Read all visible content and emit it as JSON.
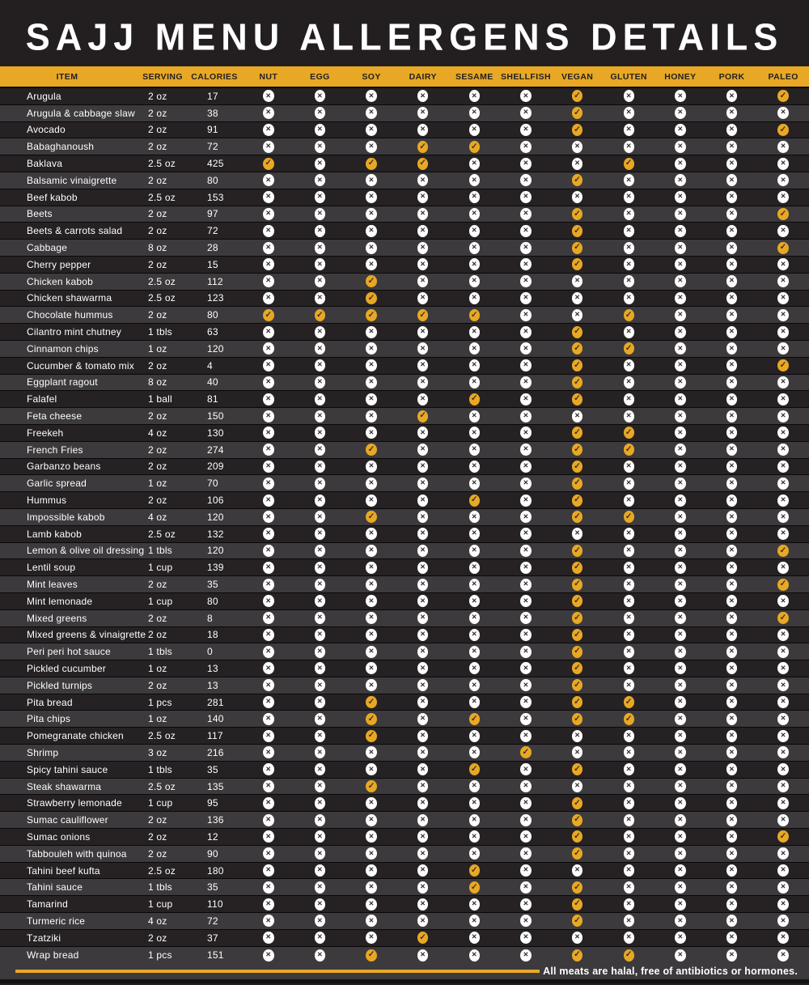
{
  "title": "SAJJ MENU ALLERGENS DETAILS",
  "columns": [
    "ITEM",
    "SERVING",
    "CALORIES",
    "NUT",
    "EGG",
    "SOY",
    "DAIRY",
    "SESAME",
    "SHELLFISH",
    "VEGAN",
    "GLUTEN",
    "HONEY",
    "PORK",
    "PALEO"
  ],
  "marks": {
    "check": "✓",
    "x": "✕"
  },
  "footer": {
    "note": "All meats are halal, free of antibiotics or hormones."
  },
  "colors": {
    "gold": "#E8A825",
    "page_bg": "#231F20",
    "row_dark": "#262223",
    "row_light": "#3C3A3C",
    "separator": "#0A0809",
    "title_text": "#FFFFFF",
    "header_text": "#231F20",
    "row_text": "#FFFFFF",
    "mark_x_bg": "#FFFFFF",
    "mark_glyph": "#272324",
    "footer_text": "#FFFFFF",
    "bottom_strip": "#141112"
  },
  "rows": [
    {
      "item": "Arugula",
      "serving": "2 oz",
      "calories": "17",
      "marks": [
        0,
        0,
        0,
        0,
        0,
        0,
        1,
        0,
        0,
        0,
        1
      ]
    },
    {
      "item": "Arugula & cabbage slaw",
      "serving": "2 oz",
      "calories": "38",
      "marks": [
        0,
        0,
        0,
        0,
        0,
        0,
        1,
        0,
        0,
        0,
        0
      ]
    },
    {
      "item": "Avocado",
      "serving": "2 oz",
      "calories": "91",
      "marks": [
        0,
        0,
        0,
        0,
        0,
        0,
        1,
        0,
        0,
        0,
        1
      ]
    },
    {
      "item": "Babaghanoush",
      "serving": "2 oz",
      "calories": "72",
      "marks": [
        0,
        0,
        0,
        1,
        1,
        0,
        0,
        0,
        0,
        0,
        0
      ]
    },
    {
      "item": "Baklava",
      "serving": "2.5 oz",
      "calories": "425",
      "marks": [
        1,
        0,
        1,
        1,
        0,
        0,
        0,
        1,
        0,
        0,
        0
      ]
    },
    {
      "item": "Balsamic vinaigrette",
      "serving": "2 oz",
      "calories": "80",
      "marks": [
        0,
        0,
        0,
        0,
        0,
        0,
        1,
        0,
        0,
        0,
        0
      ]
    },
    {
      "item": "Beef kabob",
      "serving": "2.5 oz",
      "calories": "153",
      "marks": [
        0,
        0,
        0,
        0,
        0,
        0,
        0,
        0,
        0,
        0,
        0
      ]
    },
    {
      "item": "Beets",
      "serving": "2 oz",
      "calories": "97",
      "marks": [
        0,
        0,
        0,
        0,
        0,
        0,
        1,
        0,
        0,
        0,
        1
      ]
    },
    {
      "item": "Beets & carrots salad",
      "serving": "2 oz",
      "calories": "72",
      "marks": [
        0,
        0,
        0,
        0,
        0,
        0,
        1,
        0,
        0,
        0,
        0
      ]
    },
    {
      "item": "Cabbage",
      "serving": "8 oz",
      "calories": "28",
      "marks": [
        0,
        0,
        0,
        0,
        0,
        0,
        1,
        0,
        0,
        0,
        1
      ]
    },
    {
      "item": "Cherry pepper",
      "serving": "2 oz",
      "calories": "15",
      "marks": [
        0,
        0,
        0,
        0,
        0,
        0,
        1,
        0,
        0,
        0,
        0
      ]
    },
    {
      "item": "Chicken kabob",
      "serving": "2.5 oz",
      "calories": "112",
      "marks": [
        0,
        0,
        1,
        0,
        0,
        0,
        0,
        0,
        0,
        0,
        0
      ]
    },
    {
      "item": "Chicken shawarma",
      "serving": "2.5 oz",
      "calories": "123",
      "marks": [
        0,
        0,
        1,
        0,
        0,
        0,
        0,
        0,
        0,
        0,
        0
      ]
    },
    {
      "item": "Chocolate hummus",
      "serving": "2 oz",
      "calories": "80",
      "marks": [
        1,
        1,
        1,
        1,
        1,
        0,
        0,
        1,
        0,
        0,
        0
      ]
    },
    {
      "item": "Cilantro mint chutney",
      "serving": "1 tbls",
      "calories": "63",
      "marks": [
        0,
        0,
        0,
        0,
        0,
        0,
        1,
        0,
        0,
        0,
        0
      ]
    },
    {
      "item": "Cinnamon chips",
      "serving": "1 oz",
      "calories": "120",
      "marks": [
        0,
        0,
        0,
        0,
        0,
        0,
        1,
        1,
        0,
        0,
        0
      ]
    },
    {
      "item": "Cucumber & tomato mix",
      "serving": "2 oz",
      "calories": "4",
      "marks": [
        0,
        0,
        0,
        0,
        0,
        0,
        1,
        0,
        0,
        0,
        1
      ]
    },
    {
      "item": "Eggplant ragout",
      "serving": "8 oz",
      "calories": "40",
      "marks": [
        0,
        0,
        0,
        0,
        0,
        0,
        1,
        0,
        0,
        0,
        0
      ]
    },
    {
      "item": "Falafel",
      "serving": "1 ball",
      "calories": "81",
      "marks": [
        0,
        0,
        0,
        0,
        1,
        0,
        1,
        0,
        0,
        0,
        0
      ]
    },
    {
      "item": "Feta cheese",
      "serving": "2 oz",
      "calories": "150",
      "marks": [
        0,
        0,
        0,
        1,
        0,
        0,
        0,
        0,
        0,
        0,
        0
      ]
    },
    {
      "item": "Freekeh",
      "serving": "4 oz",
      "calories": "130",
      "marks": [
        0,
        0,
        0,
        0,
        0,
        0,
        1,
        1,
        0,
        0,
        0
      ]
    },
    {
      "item": "French Fries",
      "serving": "2 oz",
      "calories": "274",
      "marks": [
        0,
        0,
        1,
        0,
        0,
        0,
        1,
        1,
        0,
        0,
        0
      ]
    },
    {
      "item": "Garbanzo beans",
      "serving": "2 oz",
      "calories": "209",
      "marks": [
        0,
        0,
        0,
        0,
        0,
        0,
        1,
        0,
        0,
        0,
        0
      ]
    },
    {
      "item": "Garlic spread",
      "serving": "1 oz",
      "calories": "70",
      "marks": [
        0,
        0,
        0,
        0,
        0,
        0,
        1,
        0,
        0,
        0,
        0
      ]
    },
    {
      "item": "Hummus",
      "serving": "2 oz",
      "calories": "106",
      "marks": [
        0,
        0,
        0,
        0,
        1,
        0,
        1,
        0,
        0,
        0,
        0
      ]
    },
    {
      "item": "Impossible kabob",
      "serving": "4 oz",
      "calories": "120",
      "marks": [
        0,
        0,
        1,
        0,
        0,
        0,
        1,
        1,
        0,
        0,
        0
      ]
    },
    {
      "item": "Lamb kabob",
      "serving": "2.5 oz",
      "calories": "132",
      "marks": [
        0,
        0,
        0,
        0,
        0,
        0,
        0,
        0,
        0,
        0,
        0
      ]
    },
    {
      "item": "Lemon & olive oil dressing",
      "serving": "1 tbls",
      "calories": "120",
      "marks": [
        0,
        0,
        0,
        0,
        0,
        0,
        1,
        0,
        0,
        0,
        1
      ]
    },
    {
      "item": "Lentil soup",
      "serving": "1 cup",
      "calories": "139",
      "marks": [
        0,
        0,
        0,
        0,
        0,
        0,
        1,
        0,
        0,
        0,
        0
      ]
    },
    {
      "item": "Mint leaves",
      "serving": "2 oz",
      "calories": "35",
      "marks": [
        0,
        0,
        0,
        0,
        0,
        0,
        1,
        0,
        0,
        0,
        1
      ]
    },
    {
      "item": "Mint lemonade",
      "serving": "1 cup",
      "calories": "80",
      "marks": [
        0,
        0,
        0,
        0,
        0,
        0,
        1,
        0,
        0,
        0,
        0
      ]
    },
    {
      "item": "Mixed greens",
      "serving": "2 oz",
      "calories": "8",
      "marks": [
        0,
        0,
        0,
        0,
        0,
        0,
        1,
        0,
        0,
        0,
        1
      ]
    },
    {
      "item": "Mixed greens & vinaigrette",
      "serving": "2 oz",
      "calories": "18",
      "marks": [
        0,
        0,
        0,
        0,
        0,
        0,
        1,
        0,
        0,
        0,
        0
      ]
    },
    {
      "item": "Peri peri hot sauce",
      "serving": "1 tbls",
      "calories": "0",
      "marks": [
        0,
        0,
        0,
        0,
        0,
        0,
        1,
        0,
        0,
        0,
        0
      ]
    },
    {
      "item": "Pickled cucumber",
      "serving": "1 oz",
      "calories": "13",
      "marks": [
        0,
        0,
        0,
        0,
        0,
        0,
        1,
        0,
        0,
        0,
        0
      ]
    },
    {
      "item": "Pickled turnips",
      "serving": "2 oz",
      "calories": "13",
      "marks": [
        0,
        0,
        0,
        0,
        0,
        0,
        1,
        0,
        0,
        0,
        0
      ]
    },
    {
      "item": "Pita bread",
      "serving": "1 pcs",
      "calories": "281",
      "marks": [
        0,
        0,
        1,
        0,
        0,
        0,
        1,
        1,
        0,
        0,
        0
      ]
    },
    {
      "item": "Pita chips",
      "serving": "1 oz",
      "calories": "140",
      "marks": [
        0,
        0,
        1,
        0,
        1,
        0,
        1,
        1,
        0,
        0,
        0
      ]
    },
    {
      "item": "Pomegranate chicken",
      "serving": "2.5 oz",
      "calories": "117",
      "marks": [
        0,
        0,
        1,
        0,
        0,
        0,
        0,
        0,
        0,
        0,
        0
      ]
    },
    {
      "item": "Shrimp",
      "serving": "3 oz",
      "calories": "216",
      "marks": [
        0,
        0,
        0,
        0,
        0,
        1,
        0,
        0,
        0,
        0,
        0
      ]
    },
    {
      "item": "Spicy tahini sauce",
      "serving": "1 tbls",
      "calories": "35",
      "marks": [
        0,
        0,
        0,
        0,
        1,
        0,
        1,
        0,
        0,
        0,
        0
      ]
    },
    {
      "item": "Steak shawarma",
      "serving": "2.5 oz",
      "calories": "135",
      "marks": [
        0,
        0,
        1,
        0,
        0,
        0,
        0,
        0,
        0,
        0,
        0
      ]
    },
    {
      "item": "Strawberry lemonade",
      "serving": "1 cup",
      "calories": "95",
      "marks": [
        0,
        0,
        0,
        0,
        0,
        0,
        1,
        0,
        0,
        0,
        0
      ]
    },
    {
      "item": "Sumac cauliflower",
      "serving": "2 oz",
      "calories": "136",
      "marks": [
        0,
        0,
        0,
        0,
        0,
        0,
        1,
        0,
        0,
        0,
        0
      ]
    },
    {
      "item": "Sumac onions",
      "serving": "2 oz",
      "calories": "12",
      "marks": [
        0,
        0,
        0,
        0,
        0,
        0,
        1,
        0,
        0,
        0,
        1
      ]
    },
    {
      "item": "Tabbouleh with quinoa",
      "serving": "2 oz",
      "calories": "90",
      "marks": [
        0,
        0,
        0,
        0,
        0,
        0,
        1,
        0,
        0,
        0,
        0
      ]
    },
    {
      "item": "Tahini beef kufta",
      "serving": "2.5 oz",
      "calories": "180",
      "marks": [
        0,
        0,
        0,
        0,
        1,
        0,
        0,
        0,
        0,
        0,
        0
      ]
    },
    {
      "item": "Tahini sauce",
      "serving": "1 tbls",
      "calories": "35",
      "marks": [
        0,
        0,
        0,
        0,
        1,
        0,
        1,
        0,
        0,
        0,
        0
      ]
    },
    {
      "item": "Tamarind",
      "serving": "1 cup",
      "calories": "110",
      "marks": [
        0,
        0,
        0,
        0,
        0,
        0,
        1,
        0,
        0,
        0,
        0
      ]
    },
    {
      "item": "Turmeric rice",
      "serving": "4 oz",
      "calories": "72",
      "marks": [
        0,
        0,
        0,
        0,
        0,
        0,
        1,
        0,
        0,
        0,
        0
      ]
    },
    {
      "item": "Tzatziki",
      "serving": "2 oz",
      "calories": "37",
      "marks": [
        0,
        0,
        0,
        1,
        0,
        0,
        0,
        0,
        0,
        0,
        0
      ]
    },
    {
      "item": "Wrap bread",
      "serving": "1 pcs",
      "calories": "151",
      "marks": [
        0,
        0,
        1,
        0,
        0,
        0,
        1,
        1,
        0,
        0,
        0
      ]
    }
  ]
}
